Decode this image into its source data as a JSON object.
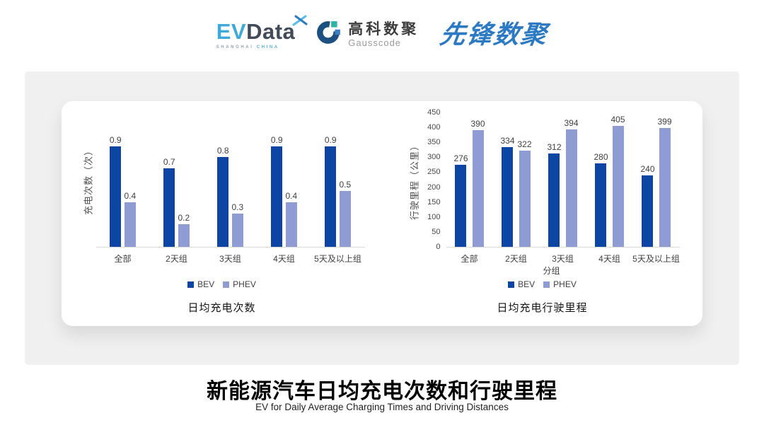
{
  "header": {
    "evdata": {
      "ev": "EV",
      "data": "Data",
      "sub_left": "SHANGHAI",
      "sub_right": "CHINA"
    },
    "gausscode": {
      "cn": "高科数聚",
      "en": "Gausscode"
    },
    "xianfeng": "先锋数聚"
  },
  "colors": {
    "bev": "#0D45A4",
    "phev": "#8F9CD3",
    "panel_gray": "#F0F0F0",
    "card_white": "#FFFFFF",
    "baseline_gray": "#D9D9D9",
    "label_text": "#404040",
    "evdata_blue": "#3FA9DC",
    "evdata_dark": "#414B5A",
    "gauss_navy": "#1B5080",
    "gauss_teal": "#2FB3A6",
    "gauss_blue": "#3A7FC1",
    "xianfeng_blue": "#2C79C4"
  },
  "chart_data": [
    {
      "type": "bar",
      "title": "日均充电次数",
      "ylabel": "充电次数（次）",
      "xlabel": "",
      "categories": [
        "全部",
        "2天组",
        "3天组",
        "4天组",
        "5天及以上组"
      ],
      "series": [
        {
          "name": "BEV",
          "color": "#0D45A4",
          "values": [
            0.9,
            0.7,
            0.8,
            0.9,
            0.9
          ]
        },
        {
          "name": "PHEV",
          "color": "#8F9CD3",
          "values": [
            0.4,
            0.2,
            0.3,
            0.4,
            0.5
          ]
        }
      ],
      "ylim": [
        0,
        1.2
      ],
      "yticks": null,
      "grid": false,
      "legend_position": "bottom"
    },
    {
      "type": "bar",
      "title": "日均充电行驶里程",
      "ylabel": "行驶里程（公里）",
      "xlabel": "分组",
      "categories": [
        "全部",
        "2天组",
        "3天组",
        "4天组",
        "5天及以上组"
      ],
      "series": [
        {
          "name": "BEV",
          "color": "#0D45A4",
          "values": [
            276,
            334,
            312,
            280,
            240
          ]
        },
        {
          "name": "PHEV",
          "color": "#8F9CD3",
          "values": [
            390,
            322,
            394,
            405,
            399
          ]
        }
      ],
      "ylim": [
        0,
        450
      ],
      "yticks": [
        0,
        50,
        100,
        150,
        200,
        250,
        300,
        350,
        400,
        450
      ],
      "grid": false,
      "legend_position": "bottom"
    }
  ],
  "footer": {
    "title": "新能源汽车日均充电次数和行驶里程",
    "subtitle": "EV for Daily Average Charging Times and Driving Distances"
  }
}
